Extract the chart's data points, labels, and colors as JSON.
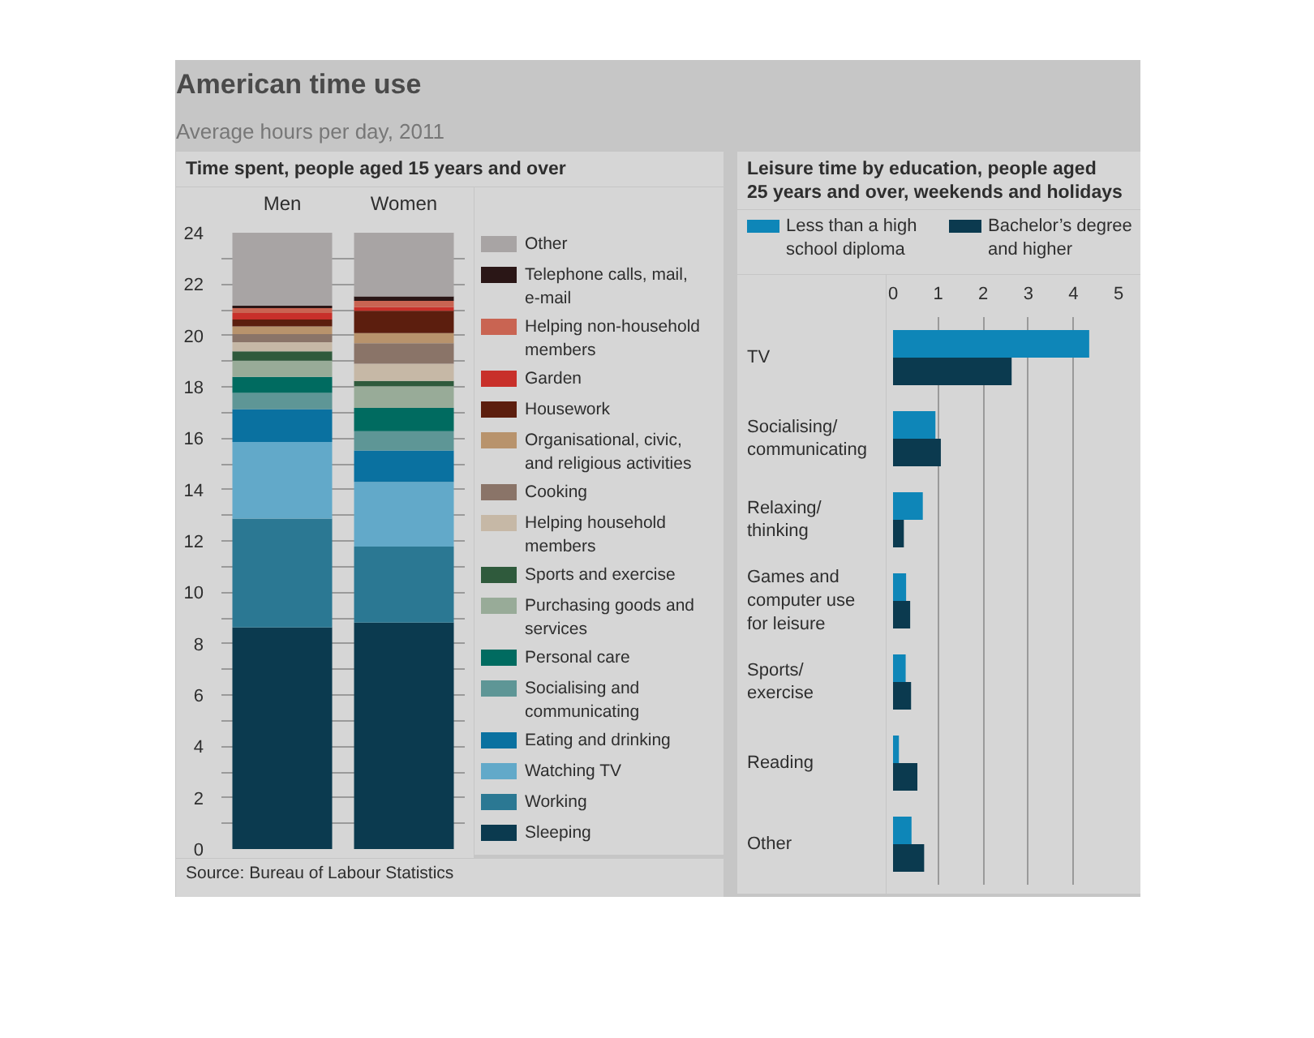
{
  "chart_data": [
    {
      "type": "other",
      "title": "American time use",
      "subtitle": "Average hours per day, 2011"
    },
    {
      "type": "bar",
      "stacked": true,
      "title": "Time spent, people aged 15 years and over",
      "categories": [
        "Men",
        "Women"
      ],
      "series": [
        {
          "name": "Sleeping",
          "color": "#0b3a4f",
          "values": [
            8.63,
            8.82
          ]
        },
        {
          "name": "Working",
          "color": "#2b7893",
          "values": [
            4.24,
            2.96
          ]
        },
        {
          "name": "Watching TV",
          "color": "#62a9c9",
          "values": [
            2.98,
            2.52
          ]
        },
        {
          "name": "Eating and drinking",
          "color": "#0a71a0",
          "values": [
            1.28,
            1.22
          ]
        },
        {
          "name": "Socialising and communicating",
          "color": "#5e9696",
          "values": [
            0.63,
            0.75
          ]
        },
        {
          "name": "Personal care",
          "color": "#006b60",
          "values": [
            0.63,
            0.91
          ]
        },
        {
          "name": "Purchasing goods and services",
          "color": "#98ab98",
          "values": [
            0.63,
            0.84
          ]
        },
        {
          "name": "Sports and exercise",
          "color": "#2f5a3c",
          "values": [
            0.36,
            0.21
          ]
        },
        {
          "name": "Helping household members",
          "color": "#c6b8a6",
          "values": [
            0.36,
            0.67
          ]
        },
        {
          "name": "Cooking",
          "color": "#8a7468",
          "values": [
            0.31,
            0.8
          ]
        },
        {
          "name": "Organisational, civic, and religious activities",
          "color": "#b8936c",
          "values": [
            0.3,
            0.39
          ]
        },
        {
          "name": "Housework",
          "color": "#5c1e0e",
          "values": [
            0.27,
            0.87
          ]
        },
        {
          "name": "Garden",
          "color": "#c8302a",
          "values": [
            0.25,
            0.14
          ]
        },
        {
          "name": "Helping non-household members",
          "color": "#c96452",
          "values": [
            0.19,
            0.25
          ]
        },
        {
          "name": "Telephone calls, mail, e-mail",
          "color": "#2a1616",
          "values": [
            0.1,
            0.17
          ]
        },
        {
          "name": "Other",
          "color": "#a8a4a4",
          "values": [
            2.84,
            2.48
          ]
        }
      ],
      "ylim": [
        0,
        24
      ],
      "yticks": [
        0,
        {
          "value": 1,
          "label": null
        },
        2,
        {
          "value": 3,
          "label": null
        },
        4,
        {
          "value": 5,
          "label": null
        },
        6,
        {
          "value": 7,
          "label": null
        },
        8,
        {
          "value": 9,
          "label": null
        },
        10,
        {
          "value": 11,
          "label": null
        },
        12,
        {
          "value": 13,
          "label": null
        },
        14,
        {
          "value": 15,
          "label": null
        },
        16,
        {
          "value": 17,
          "label": null
        },
        18,
        {
          "value": 19,
          "label": null
        },
        20,
        {
          "value": 21,
          "label": null
        },
        22,
        {
          "value": 23,
          "label": null
        },
        24
      ],
      "grid": "y",
      "legend": "right",
      "annotations": [
        "Source: Bureau of Labour Statistics"
      ]
    },
    {
      "type": "bar",
      "orientation": "horizontal",
      "title": "Leisure time by education, people aged 25 years and over, weekends and holidays",
      "categories": [
        "TV",
        "Socialising/ communicating",
        "Relaxing/ thinking",
        "Games and computer use for leisure",
        "Sports/ exercise",
        "Reading",
        "Other"
      ],
      "series": [
        {
          "name": "Less than a high school diploma",
          "color": "#0e86b8",
          "values": [
            4.35,
            0.94,
            0.66,
            0.29,
            0.28,
            0.13,
            0.41
          ]
        },
        {
          "name": "Bachelor’s degree and higher",
          "color": "#0b3a4f",
          "values": [
            2.63,
            1.06,
            0.24,
            0.38,
            0.4,
            0.54,
            0.69
          ]
        }
      ],
      "xlim": [
        0,
        5
      ],
      "xticks": [
        0,
        1,
        2,
        3,
        4,
        5
      ],
      "grid": "x",
      "legend": "top"
    }
  ]
}
